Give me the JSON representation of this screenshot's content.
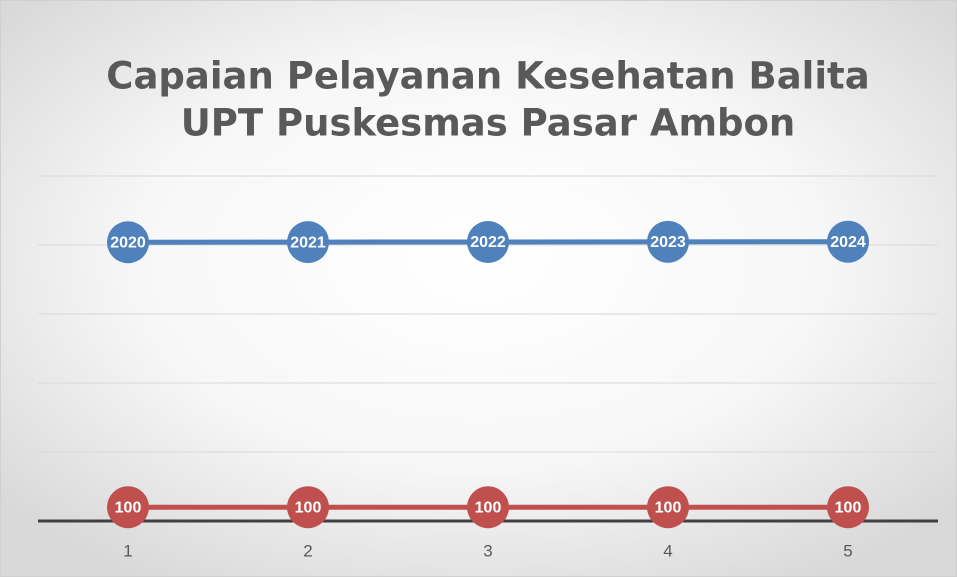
{
  "chart_data": {
    "type": "line",
    "title": [
      "Capaian Pelayanan Kesehatan Balita",
      "UPT Puskesmas Pasar Ambon"
    ],
    "categories": [
      "1",
      "2",
      "3",
      "4",
      "5"
    ],
    "series": [
      {
        "color": "#4f81bd",
        "values": [
          2020,
          2021,
          2022,
          2023,
          2024
        ]
      },
      {
        "color": "#c0504d",
        "values": [
          100,
          100,
          100,
          100,
          100
        ]
      }
    ],
    "ylim": [
      0,
      2500
    ],
    "yticks": [
      0,
      500,
      1000,
      1500,
      2000,
      2500
    ],
    "grid": true
  }
}
